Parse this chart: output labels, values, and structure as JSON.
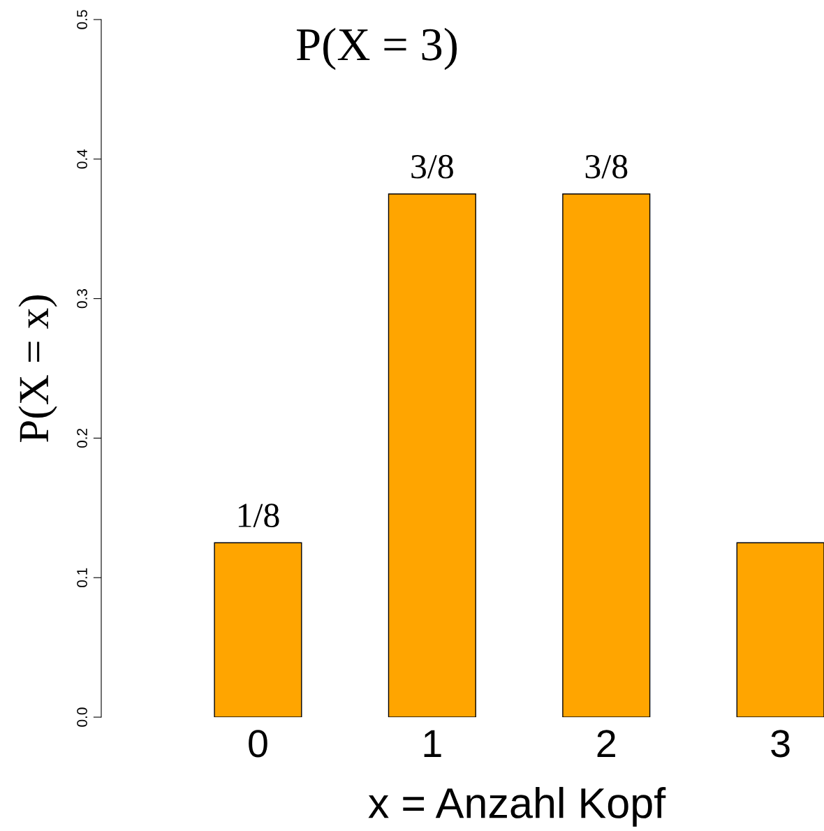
{
  "chart_data": {
    "type": "bar",
    "title": "P(X = 3)",
    "ylabel": "P(X = x)",
    "xlabel": "x = Anzahl Kopf",
    "categories": [
      "0",
      "1",
      "2",
      "3"
    ],
    "values": [
      0.125,
      0.375,
      0.375,
      0.125
    ],
    "value_labels": [
      "1/8",
      "3/8",
      "3/8",
      null
    ],
    "color": "#ffa500",
    "ylim": [
      0,
      0.5
    ],
    "yticks": [
      {
        "value": 0,
        "label": "0.0"
      },
      0.1,
      0.2,
      0.3,
      0.4,
      0.5
    ],
    "grid": false,
    "legend": false
  }
}
